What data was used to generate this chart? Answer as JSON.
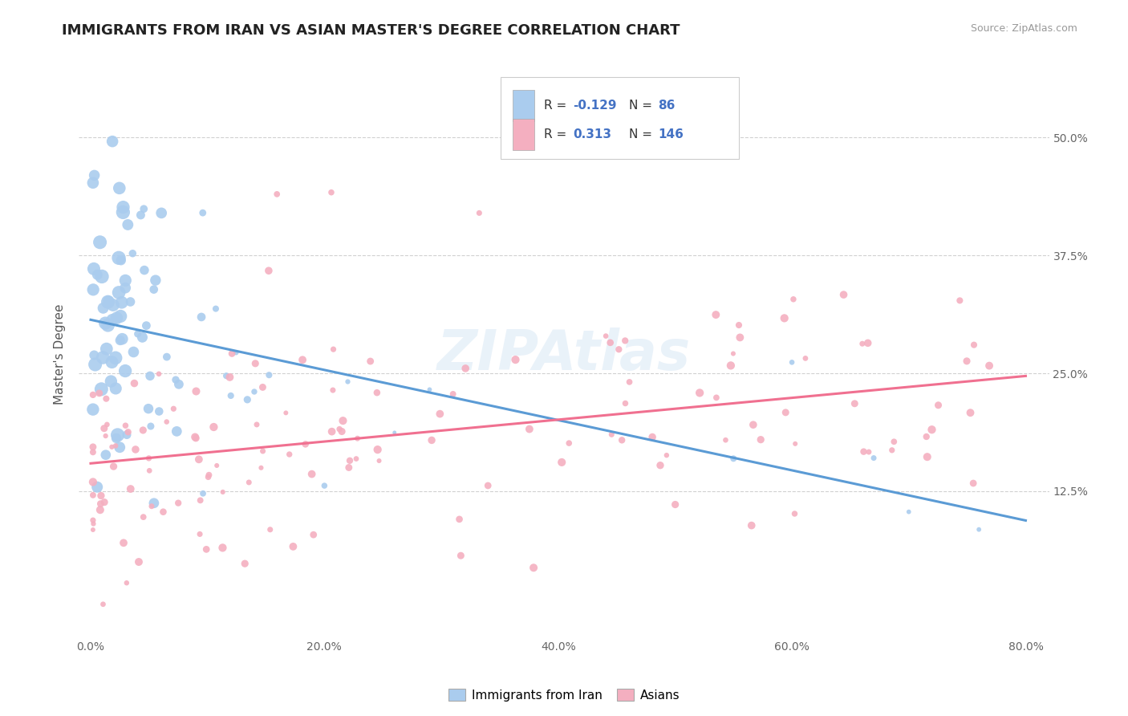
{
  "title": "IMMIGRANTS FROM IRAN VS ASIAN MASTER'S DEGREE CORRELATION CHART",
  "source": "Source: ZipAtlas.com",
  "watermark": "ZIPAtlas",
  "ylabel_label": "Master's Degree",
  "legend_labels": [
    "Immigrants from Iran",
    "Asians"
  ],
  "blue_color": "#aaccee",
  "pink_color": "#f4afc0",
  "blue_line_color": "#5b9bd5",
  "pink_line_color": "#f07090",
  "blue_R": -0.129,
  "blue_N": 86,
  "pink_R": 0.313,
  "pink_N": 146,
  "background_color": "#ffffff",
  "grid_color": "#cccccc",
  "xlim": [
    -0.01,
    0.82
  ],
  "ylim": [
    -0.03,
    0.57
  ],
  "xticks": [
    0.0,
    0.2,
    0.4,
    0.6,
    0.8
  ],
  "xticklabels": [
    "0.0%",
    "20.0%",
    "40.0%",
    "60.0%",
    "80.0%"
  ],
  "yticks": [
    0.125,
    0.25,
    0.375,
    0.5
  ],
  "yticklabels": [
    "12.5%",
    "25.0%",
    "37.5%",
    "50.0%"
  ],
  "rn_color": "#4472c4",
  "rn_label_color": "#333333"
}
